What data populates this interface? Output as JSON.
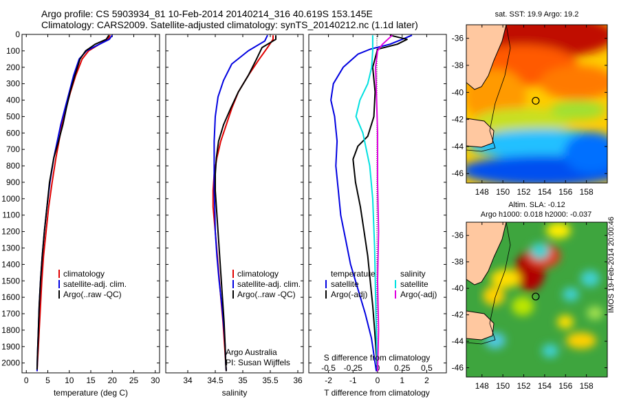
{
  "header": {
    "line1": "Argo profile: CS 5903934_81 10-Feb-2014 20140214_316 40.619S 153.145E",
    "line2": "Climatology: CARS2009. Satellite-adjusted climatology: synTS_20140212.nc (1.1d later)"
  },
  "map_titles": {
    "sst": "sat. SST: 19.9 Argo: 19.2",
    "sla_line1": "Altim. SLA: -0.12",
    "sla_line2": "Argo h1000: 0.018 h2000: -0.037"
  },
  "footer_vertical": "IMOS 19-Feb-2014 20:00:46",
  "chart_data": [
    {
      "type": "line",
      "name": "temperature-profile",
      "xlabel": "temperature (deg C)",
      "ylabel": "",
      "xlim": [
        -1,
        31
      ],
      "ylim": [
        2060,
        0
      ],
      "xticks": [
        0,
        5,
        10,
        15,
        20,
        25,
        30
      ],
      "yticks": [
        0,
        100,
        200,
        300,
        400,
        500,
        600,
        700,
        800,
        900,
        1000,
        1100,
        1200,
        1300,
        1400,
        1500,
        1600,
        1700,
        1800,
        1900,
        2000
      ],
      "legend": [
        "climatology",
        "satellite-adj. clim.",
        "Argo(..raw -QC)"
      ],
      "series": [
        {
          "name": "climatology",
          "color": "#e00000",
          "x": [
            19.5,
            19.0,
            17.0,
            14.5,
            13.0,
            11.5,
            10.3,
            9.2,
            8.3,
            7.6,
            6.9,
            6.0,
            5.2,
            4.6,
            4.0,
            3.6,
            3.3,
            3.0,
            2.8,
            2.6,
            2.5
          ],
          "y": [
            5,
            30,
            60,
            100,
            150,
            250,
            350,
            450,
            550,
            650,
            750,
            900,
            1050,
            1200,
            1350,
            1500,
            1650,
            1800,
            1900,
            2000,
            2050
          ]
        },
        {
          "name": "satellite-adj. clim.",
          "color": "#0000e0",
          "x": [
            20.0,
            19.3,
            17.0,
            14.0,
            12.3,
            11.0,
            10.0,
            9.0,
            8.0,
            7.2,
            6.4,
            5.5,
            4.8,
            4.2,
            3.7,
            3.3,
            3.0,
            2.8,
            2.6,
            2.5
          ],
          "y": [
            5,
            30,
            60,
            100,
            150,
            250,
            350,
            450,
            550,
            650,
            750,
            900,
            1050,
            1200,
            1350,
            1500,
            1650,
            1800,
            1950,
            2050
          ]
        },
        {
          "name": "Argo(..raw -QC)",
          "color": "#000000",
          "x": [
            19.2,
            18.6,
            16.0,
            13.8,
            12.5,
            11.3,
            10.2,
            9.3,
            8.5,
            7.5,
            6.4,
            5.4,
            4.8,
            4.2,
            3.7,
            3.3,
            3.0,
            2.8,
            2.6,
            2.5
          ],
          "y": [
            5,
            30,
            60,
            100,
            150,
            250,
            350,
            450,
            550,
            650,
            750,
            900,
            1050,
            1200,
            1350,
            1500,
            1650,
            1800,
            1950,
            2040
          ]
        }
      ]
    },
    {
      "type": "line",
      "name": "salinity-profile",
      "xlabel": "salinity",
      "ylabel": "",
      "xlim": [
        33.6,
        36.1
      ],
      "ylim": [
        2060,
        0
      ],
      "xticks": [
        34,
        34.5,
        35,
        35.5,
        36
      ],
      "legend": [
        "climatology",
        "satellite-adj. clim.",
        "Argo(..raw -QC)"
      ],
      "annotation": [
        "Argo Australia",
        "PI: Susan Wijffels"
      ],
      "series": [
        {
          "name": "climatology",
          "color": "#e00000",
          "x": [
            35.55,
            35.55,
            35.45,
            35.3,
            35.1,
            34.92,
            34.8,
            34.7,
            34.6,
            34.53,
            34.48,
            34.46,
            34.46,
            34.5,
            34.55,
            34.6,
            34.64,
            34.67,
            34.69,
            34.7
          ],
          "y": [
            5,
            30,
            80,
            150,
            250,
            350,
            450,
            550,
            650,
            750,
            850,
            950,
            1050,
            1200,
            1400,
            1600,
            1750,
            1900,
            2000,
            2050
          ]
        },
        {
          "name": "satellite-adj. clim.",
          "color": "#0000e0",
          "x": [
            35.45,
            35.4,
            35.1,
            34.8,
            34.65,
            34.55,
            34.5,
            34.48,
            34.48,
            34.48,
            34.49,
            34.5,
            34.53,
            34.57,
            34.62,
            34.66,
            34.68,
            34.69,
            34.7
          ],
          "y": [
            5,
            40,
            100,
            180,
            280,
            380,
            500,
            650,
            800,
            950,
            1050,
            1200,
            1350,
            1500,
            1650,
            1800,
            1900,
            2000,
            2050
          ]
        },
        {
          "name": "Argo(..raw -QC)",
          "color": "#000000",
          "x": [
            35.6,
            35.6,
            35.35,
            35.25,
            35.1,
            34.92,
            34.78,
            34.65,
            34.56,
            34.52,
            34.5,
            34.5,
            34.52,
            34.55,
            34.59,
            34.63,
            34.66,
            34.68,
            34.69,
            34.7
          ],
          "y": [
            5,
            30,
            80,
            150,
            250,
            350,
            450,
            550,
            650,
            750,
            850,
            950,
            1050,
            1200,
            1400,
            1600,
            1750,
            1900,
            2000,
            2050
          ]
        }
      ]
    },
    {
      "type": "line",
      "name": "difference-profile",
      "xlabel": "T difference from climatology",
      "xlabel_top": "S difference from climatology",
      "xlim": [
        -2.8,
        2.8
      ],
      "ylim": [
        2060,
        0
      ],
      "xticks": [
        -2,
        -1,
        0,
        1,
        2
      ],
      "xticks_s": [
        -0.5,
        -0.25,
        0,
        0.25,
        0.5
      ],
      "xticks_s_labels": [
        "-0.5",
        "-0.25",
        "0",
        "0.25",
        "0.5"
      ],
      "legend": {
        "temperature_heading": "temperature",
        "salinity_heading": "salinity",
        "temperature": [
          "satellite",
          "Argo(-adj)"
        ],
        "salinity": [
          "satellite",
          "Argo(-adj)"
        ]
      },
      "series": [
        {
          "name": "temperature satellite",
          "color": "#0000e0",
          "x": [
            1.4,
            1.0,
            0.5,
            -0.3,
            -0.8,
            -1.4,
            -1.8,
            -1.9,
            -1.75,
            -1.65,
            -1.7,
            -1.6,
            -1.5,
            -1.3,
            -1.1,
            -0.8,
            -0.5,
            -0.25,
            -0.1,
            -0.05
          ],
          "y": [
            5,
            30,
            60,
            90,
            120,
            200,
            300,
            400,
            500,
            650,
            800,
            950,
            1100,
            1250,
            1400,
            1550,
            1700,
            1850,
            2000,
            2050
          ]
        },
        {
          "name": "temperature Argo(-adj)",
          "color": "#000000",
          "x": [
            0.5,
            1.2,
            0.8,
            0.0,
            -0.2,
            -0.1,
            -0.15,
            -0.4,
            -0.8,
            -1.0,
            -0.9,
            -0.7,
            -0.55,
            -0.4,
            -0.3,
            -0.2,
            -0.12,
            -0.05,
            0.0
          ],
          "y": [
            5,
            30,
            60,
            90,
            200,
            350,
            500,
            620,
            680,
            760,
            900,
            1050,
            1200,
            1350,
            1500,
            1650,
            1800,
            1950,
            2050
          ]
        },
        {
          "name": "salinity satellite",
          "color": "#00e0e0",
          "x": [
            -0.05,
            -0.05,
            -0.06,
            -0.1,
            -0.18,
            -0.22,
            -0.15,
            -0.08,
            -0.05,
            -0.03,
            -0.02,
            -0.01,
            0.0
          ],
          "y": [
            5,
            100,
            200,
            300,
            400,
            500,
            600,
            800,
            1000,
            1300,
            1600,
            1900,
            2050
          ]
        },
        {
          "name": "salinity Argo(-adj)",
          "color": "#e000e0",
          "x": [
            0.15,
            0.05,
            0.0,
            -0.02,
            -0.01,
            0.0,
            0.0,
            0.01,
            0.0,
            0.01,
            0.0
          ],
          "y": [
            5,
            60,
            100,
            200,
            400,
            600,
            900,
            1200,
            1500,
            1800,
            2050
          ]
        }
      ]
    },
    {
      "type": "heatmap",
      "name": "sst-map",
      "title": "sat. SST: 19.9 Argo: 19.2",
      "xlim": [
        146.5,
        160
      ],
      "ylim": [
        -46.7,
        -35
      ],
      "xticks": [
        148,
        150,
        152,
        154,
        156,
        158
      ],
      "yticks": [
        -36,
        -38,
        -40,
        -42,
        -44,
        -46
      ],
      "float_position": {
        "lon": 153.145,
        "lat": -40.619
      }
    },
    {
      "type": "heatmap",
      "name": "sla-map",
      "title": "Altim. SLA: -0.12",
      "subtitle": "Argo h1000: 0.018 h2000: -0.037",
      "xlim": [
        146.5,
        160
      ],
      "ylim": [
        -46.7,
        -35
      ],
      "xticks": [
        148,
        150,
        152,
        154,
        156,
        158
      ],
      "yticks": [
        -36,
        -38,
        -40,
        -42,
        -44,
        -46
      ],
      "float_position": {
        "lon": 153.145,
        "lat": -40.619
      }
    }
  ]
}
